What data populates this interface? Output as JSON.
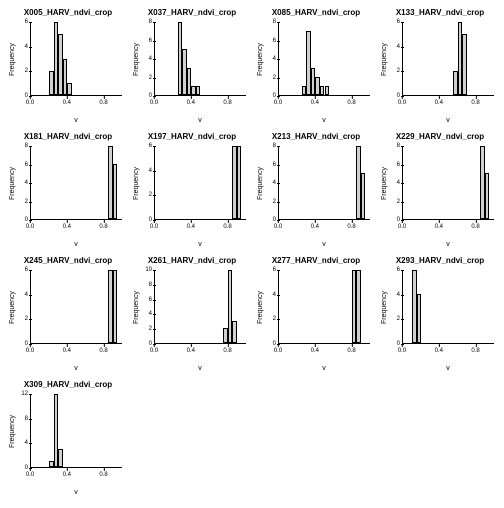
{
  "global": {
    "xlabel": "v",
    "ylabel": "Frequency",
    "xlim": [
      0.0,
      1.0
    ],
    "xticks": [
      0.0,
      0.4,
      0.8
    ],
    "title_fontsize": 8,
    "label_fontsize": 7,
    "tick_fontsize": 6,
    "background_color": "#ffffff",
    "axis_color": "#000000",
    "bar_fill": "#d0d0d0",
    "bar_border": "#000000",
    "bin_width": 0.05
  },
  "panels": [
    {
      "title": "X005_HARV_ndvi_crop",
      "ylim": [
        0,
        6
      ],
      "yticks": [
        0,
        2,
        4,
        6
      ],
      "bars": [
        {
          "x": 0.2,
          "h": 2
        },
        {
          "x": 0.25,
          "h": 6
        },
        {
          "x": 0.3,
          "h": 5
        },
        {
          "x": 0.35,
          "h": 3
        },
        {
          "x": 0.4,
          "h": 1
        }
      ]
    },
    {
      "title": "X037_HARV_ndvi_crop",
      "ylim": [
        0,
        8
      ],
      "yticks": [
        0,
        2,
        4,
        6,
        8
      ],
      "bars": [
        {
          "x": 0.25,
          "h": 8
        },
        {
          "x": 0.3,
          "h": 5
        },
        {
          "x": 0.35,
          "h": 3
        },
        {
          "x": 0.4,
          "h": 1
        },
        {
          "x": 0.45,
          "h": 1
        }
      ]
    },
    {
      "title": "X085_HARV_ndvi_crop",
      "ylim": [
        0,
        8
      ],
      "yticks": [
        0,
        2,
        4,
        6,
        8
      ],
      "bars": [
        {
          "x": 0.25,
          "h": 1
        },
        {
          "x": 0.3,
          "h": 7
        },
        {
          "x": 0.35,
          "h": 3
        },
        {
          "x": 0.4,
          "h": 2
        },
        {
          "x": 0.45,
          "h": 1
        },
        {
          "x": 0.5,
          "h": 1
        }
      ]
    },
    {
      "title": "X133_HARV_ndvi_crop",
      "ylim": [
        0,
        6
      ],
      "yticks": [
        0,
        2,
        4,
        6
      ],
      "bars": [
        {
          "x": 0.55,
          "h": 2
        },
        {
          "x": 0.6,
          "h": 6
        },
        {
          "x": 0.65,
          "h": 5
        }
      ]
    },
    {
      "title": "X181_HARV_ndvi_crop",
      "ylim": [
        0,
        8
      ],
      "yticks": [
        0,
        2,
        4,
        6,
        8
      ],
      "bars": [
        {
          "x": 0.85,
          "h": 8
        },
        {
          "x": 0.9,
          "h": 6
        }
      ]
    },
    {
      "title": "X197_HARV_ndvi_crop",
      "ylim": [
        0,
        6
      ],
      "yticks": [
        0,
        2,
        4,
        6
      ],
      "bars": [
        {
          "x": 0.85,
          "h": 6
        },
        {
          "x": 0.9,
          "h": 6
        }
      ]
    },
    {
      "title": "X213_HARV_ndvi_crop",
      "ylim": [
        0,
        8
      ],
      "yticks": [
        0,
        2,
        4,
        6,
        8
      ],
      "bars": [
        {
          "x": 0.85,
          "h": 8
        },
        {
          "x": 0.9,
          "h": 5
        }
      ]
    },
    {
      "title": "X229_HARV_ndvi_crop",
      "ylim": [
        0,
        8
      ],
      "yticks": [
        0,
        2,
        4,
        6,
        8
      ],
      "bars": [
        {
          "x": 0.85,
          "h": 8
        },
        {
          "x": 0.9,
          "h": 5
        }
      ]
    },
    {
      "title": "X245_HARV_ndvi_crop",
      "ylim": [
        0,
        6
      ],
      "yticks": [
        0,
        2,
        4,
        6
      ],
      "bars": [
        {
          "x": 0.85,
          "h": 6
        },
        {
          "x": 0.9,
          "h": 6
        }
      ]
    },
    {
      "title": "X261_HARV_ndvi_crop",
      "ylim": [
        0,
        10
      ],
      "yticks": [
        0,
        2,
        4,
        6,
        8,
        10
      ],
      "bars": [
        {
          "x": 0.75,
          "h": 2
        },
        {
          "x": 0.8,
          "h": 10
        },
        {
          "x": 0.85,
          "h": 3
        }
      ]
    },
    {
      "title": "X277_HARV_ndvi_crop",
      "ylim": [
        0,
        6
      ],
      "yticks": [
        0,
        2,
        4,
        6
      ],
      "bars": [
        {
          "x": 0.8,
          "h": 6
        },
        {
          "x": 0.85,
          "h": 6
        }
      ]
    },
    {
      "title": "X293_HARV_ndvi_crop",
      "ylim": [
        0,
        6
      ],
      "yticks": [
        0,
        2,
        4,
        6
      ],
      "bars": [
        {
          "x": 0.1,
          "h": 6
        },
        {
          "x": 0.15,
          "h": 4
        }
      ]
    },
    {
      "title": "X309_HARV_ndvi_crop",
      "ylim": [
        0,
        12
      ],
      "yticks": [
        0,
        4,
        8,
        12
      ],
      "bars": [
        {
          "x": 0.2,
          "h": 1
        },
        {
          "x": 0.25,
          "h": 12
        },
        {
          "x": 0.3,
          "h": 3
        }
      ]
    }
  ]
}
